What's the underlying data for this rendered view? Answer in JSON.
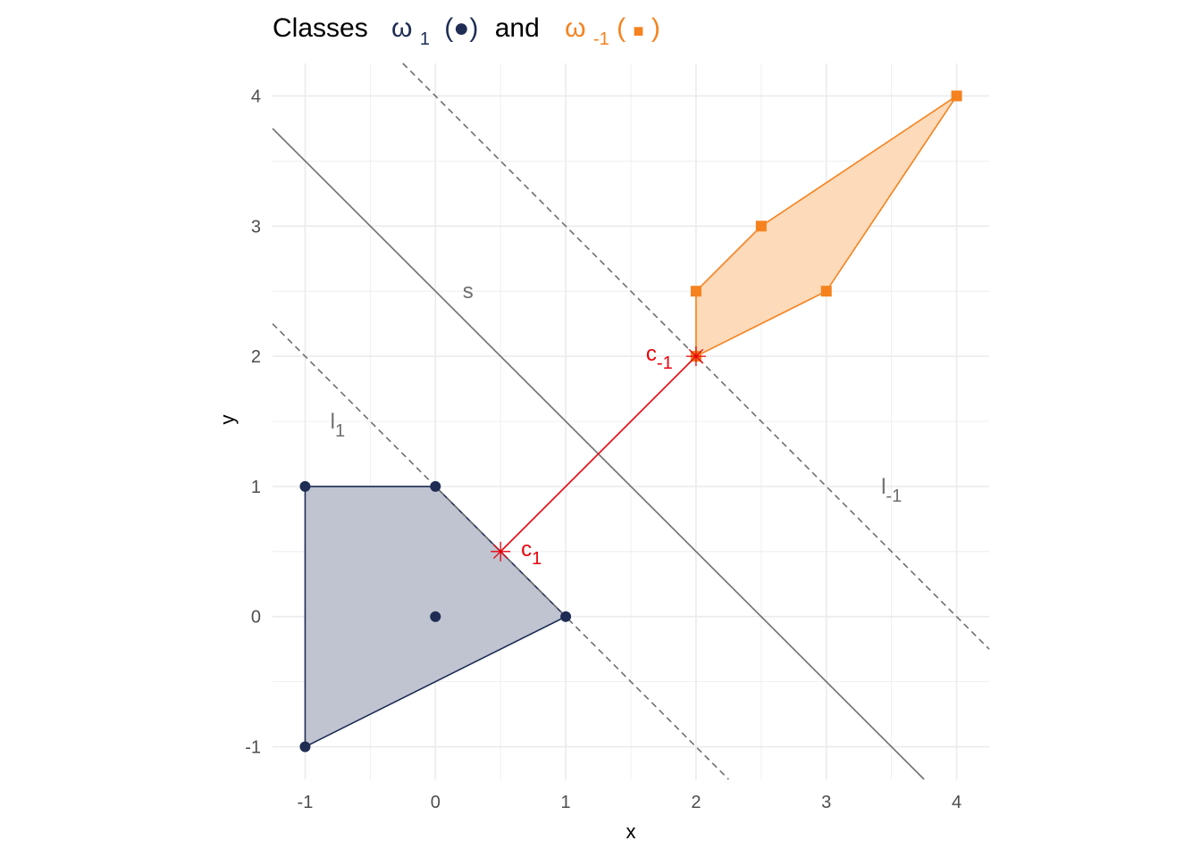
{
  "title": {
    "prefix": "Classes",
    "class1_symbol": "ω",
    "class1_sub": "1",
    "class1_marker": "(●)",
    "joiner": "and",
    "class2_symbol": "ω",
    "class2_sub": "-1",
    "class2_marker_open": "(",
    "class2_marker": "■",
    "class2_marker_close": ")"
  },
  "colors": {
    "class1": "#1f2d55",
    "class1_fill": "#bcc1cd",
    "class2": "#f5821f",
    "class2_fill": "#fdd8b5",
    "centers": "#e8000b",
    "lines": "#6e6e6e",
    "grid": "#ebebeb"
  },
  "chart_data": {
    "type": "scatter",
    "xlabel": "x",
    "ylabel": "y",
    "xlim": [
      -1.25,
      4.25
    ],
    "ylim": [
      -1.25,
      4.25
    ],
    "x_ticks": [
      -1,
      0,
      1,
      2,
      3,
      4
    ],
    "y_ticks": [
      -1,
      0,
      1,
      2,
      3,
      4
    ],
    "x_tick_labels": [
      "-1",
      "0",
      "1",
      "2",
      "3",
      "4"
    ],
    "y_tick_labels": [
      "-1",
      "0",
      "1",
      "2",
      "3",
      "4"
    ],
    "grid": true,
    "series": [
      {
        "marker": "circle",
        "points": [
          [
            -1,
            1
          ],
          [
            0,
            1
          ],
          [
            0,
            0
          ],
          [
            1,
            0
          ],
          [
            -1,
            -1
          ]
        ],
        "hull": [
          [
            -1,
            1
          ],
          [
            0,
            1
          ],
          [
            1,
            0
          ],
          [
            -1,
            -1
          ]
        ]
      },
      {
        "marker": "square",
        "points": [
          [
            2,
            2.5
          ],
          [
            2.5,
            3
          ],
          [
            3,
            2.5
          ],
          [
            4,
            4
          ],
          [
            2,
            2
          ]
        ],
        "hull": [
          [
            2,
            2.5
          ],
          [
            2.5,
            3
          ],
          [
            4,
            4
          ],
          [
            3,
            2.5
          ],
          [
            2,
            2
          ]
        ]
      }
    ],
    "centers": [
      {
        "label_main": "c",
        "label_sub": "1",
        "x": 0.5,
        "y": 0.5
      },
      {
        "label_main": "c",
        "label_sub": "-1",
        "x": 2,
        "y": 2
      }
    ],
    "lines": [
      {
        "label_main": "s",
        "label_sub": "",
        "slope": -1,
        "intercept": 2.5,
        "style": "solid",
        "label_x": 0.25,
        "label_y": 2.5
      },
      {
        "label_main": "l",
        "label_sub": "1",
        "slope": -1,
        "intercept": 1,
        "style": "dashed",
        "label_x": -0.75,
        "label_y": 1.5
      },
      {
        "label_main": "l",
        "label_sub": "-1",
        "slope": -1,
        "intercept": 4,
        "style": "dashed",
        "label_x": 3.5,
        "label_y": 1
      }
    ]
  }
}
